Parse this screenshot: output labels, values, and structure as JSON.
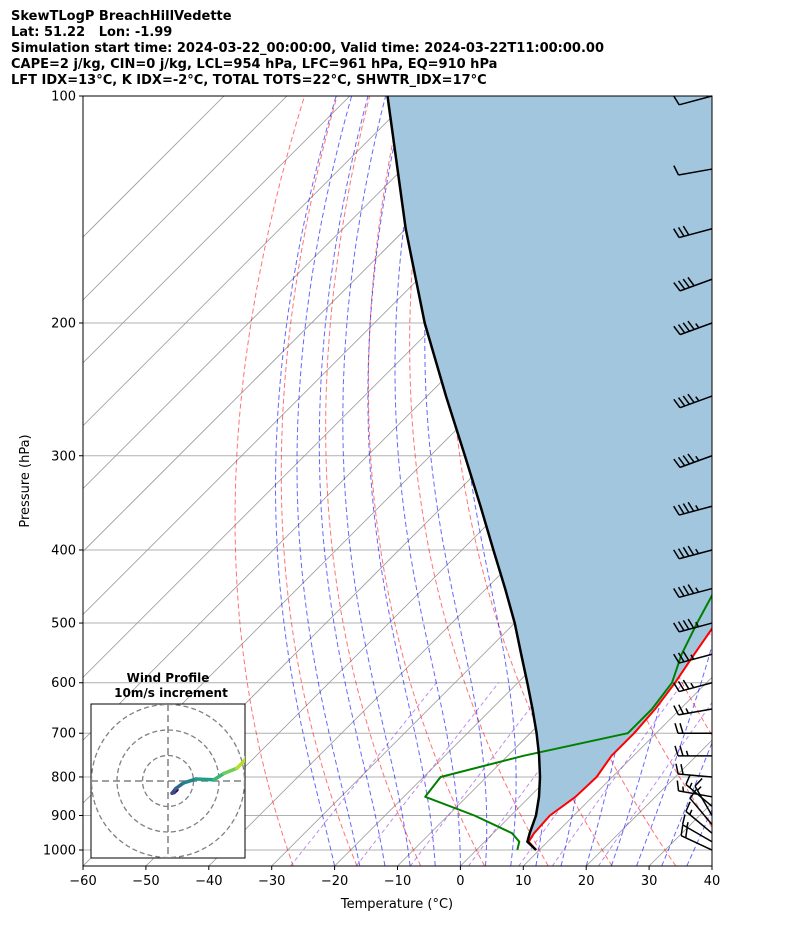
{
  "header": {
    "line1": "SkewTLogP BreachHillVedette",
    "line2": "Lat: 51.22   Lon: -1.99",
    "line3": "Simulation start time: 2024-03-22_00:00:00, Valid time: 2024-03-22T11:00:00.00",
    "line4": "CAPE=2 j/kg, CIN=0 j/kg, LCL=954 hPa, LFC=961 hPa, EQ=910 hPa",
    "line5": "LFT IDX=13°C, K IDX=-2°C, TOTAL TOTS=22°C, SHWTR_IDX=17°C"
  },
  "colors": {
    "temperature": "#ff0000",
    "dewpoint": "#008000",
    "parcel": "#000000",
    "cape_fill": "#a3c6df",
    "dry_adiabat": "#ff0000",
    "moist_adiabat": "#0000ff",
    "mixing_ratio": "#8a2be2",
    "isotherm": "#999999",
    "isobar": "#b0b0b0"
  },
  "chart_data": {
    "type": "skew-t log-p",
    "xlabel": "Temperature (°C)",
    "ylabel": "Pressure (hPa)",
    "xlim": [
      -60,
      40
    ],
    "ylim": [
      1050,
      100
    ],
    "xticks": [
      -60,
      -50,
      -40,
      -30,
      -20,
      -10,
      0,
      10,
      20,
      30,
      40
    ],
    "xtick_labels": [
      "−60",
      "−50",
      "−40",
      "−30",
      "−20",
      "−10",
      "0",
      "10",
      "20",
      "30",
      "40"
    ],
    "yticks": [
      1000,
      900,
      800,
      700,
      600,
      500,
      400,
      300,
      200,
      100
    ],
    "grid": true,
    "series": [
      {
        "role": "temperature",
        "points": [
          [
            9.5,
            1000
          ],
          [
            7,
            975
          ],
          [
            6.5,
            950
          ],
          [
            6.2,
            900
          ],
          [
            7.3,
            850
          ],
          [
            7.5,
            800
          ],
          [
            6.5,
            750
          ],
          [
            6.5,
            700
          ],
          [
            6,
            650
          ],
          [
            5,
            600
          ],
          [
            3.5,
            550
          ],
          [
            2,
            500
          ],
          [
            -0.5,
            450
          ],
          [
            -3.5,
            400
          ],
          [
            -7,
            375
          ],
          [
            -8.5,
            350
          ],
          [
            -12,
            325
          ],
          [
            -16.5,
            300
          ],
          [
            -20.3,
            275
          ],
          [
            -24,
            250
          ],
          [
            -28.5,
            225
          ],
          [
            -33.3,
            200
          ],
          [
            -28,
            180
          ],
          [
            -22.3,
            160
          ],
          [
            -21.6,
            150
          ],
          [
            -14.6,
            140
          ],
          [
            -2.7,
            120
          ],
          [
            5,
            100
          ]
        ]
      },
      {
        "role": "dewpoint",
        "points": [
          [
            6.5,
            1000
          ],
          [
            5.5,
            975
          ],
          [
            3,
            950
          ],
          [
            -5.8,
            900
          ],
          [
            -16.6,
            850
          ],
          [
            -17.3,
            800
          ],
          [
            -7.5,
            750
          ],
          [
            5.5,
            700
          ],
          [
            5.5,
            650
          ],
          [
            4.5,
            600
          ],
          [
            1.5,
            550
          ],
          [
            -1,
            500
          ],
          [
            -3.5,
            450
          ],
          [
            -7,
            400
          ],
          [
            -11,
            375
          ],
          [
            -14,
            350
          ],
          [
            -21,
            300
          ],
          [
            -31,
            250
          ],
          [
            -40.5,
            200
          ],
          [
            -43,
            180
          ],
          [
            -44.4,
            160
          ],
          [
            -46.8,
            150
          ],
          [
            -51.6,
            140
          ],
          [
            -54.8,
            130
          ],
          [
            -35.5,
            100
          ]
        ]
      },
      {
        "role": "parcel",
        "points": [
          [
            9.5,
            1000
          ],
          [
            6.8,
            975
          ],
          [
            5.8,
            950
          ],
          [
            4,
            900
          ],
          [
            1.5,
            850
          ],
          [
            -1.5,
            800
          ],
          [
            -5,
            750
          ],
          [
            -9,
            700
          ],
          [
            -13.5,
            650
          ],
          [
            -18.5,
            600
          ],
          [
            -24,
            550
          ],
          [
            -30,
            500
          ],
          [
            -37,
            450
          ],
          [
            -45,
            400
          ],
          [
            -54,
            350
          ],
          [
            -64.5,
            300
          ],
          [
            -77,
            250
          ],
          [
            -92,
            200
          ],
          [
            -110,
            150
          ],
          [
            -134,
            100
          ]
        ]
      }
    ],
    "wind_barbs": {
      "pressure": [
        1000,
        975,
        950,
        925,
        900,
        875,
        850,
        800,
        750,
        700,
        650,
        600,
        550,
        500,
        450,
        400,
        350,
        300,
        250,
        200,
        175,
        150,
        125,
        100
      ],
      "speed_kt": [
        20,
        15,
        15,
        10,
        15,
        15,
        15,
        20,
        25,
        20,
        25,
        35,
        35,
        45,
        45,
        45,
        45,
        45,
        45,
        45,
        40,
        30,
        10,
        10
      ],
      "direction_deg": [
        295,
        300,
        310,
        320,
        330,
        310,
        280,
        275,
        270,
        270,
        260,
        255,
        255,
        255,
        255,
        255,
        255,
        250,
        250,
        250,
        250,
        255,
        260,
        255
      ]
    },
    "hodograph": {
      "title": "Wind Profile",
      "subtitle": "10m/s increment",
      "rings_ms": [
        10,
        20,
        30
      ],
      "points": [
        [
          3.5,
          -3.5
        ],
        [
          2.4,
          -4.5
        ],
        [
          1.6,
          -4.8
        ],
        [
          3,
          -3
        ],
        [
          6,
          -0.8
        ],
        [
          11,
          0.8
        ],
        [
          18,
          0.5
        ],
        [
          22,
          3
        ],
        [
          27,
          5
        ],
        [
          30,
          8
        ],
        [
          32,
          12
        ],
        [
          37,
          13
        ],
        [
          48,
          12
        ]
      ]
    }
  }
}
